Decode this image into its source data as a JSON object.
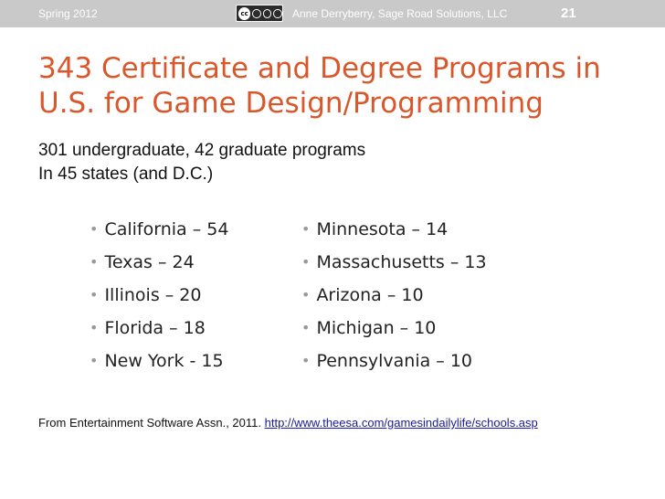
{
  "header": {
    "date": "Spring 2012",
    "license_icon": "creative-commons-by-nc-sa",
    "author": "Anne Derryberry, Sage Road Solutions, LLC",
    "page_number": "21"
  },
  "slide": {
    "title": "343 Certificate and Degree Programs in U.S. for Game Design/Programming",
    "subtitle_line1": "301 undergraduate, 42 graduate programs",
    "subtitle_line2": "In 45 states (and D.C.)",
    "bullets_left": [
      "California – 54",
      "Texas – 24",
      "Illinois – 20",
      "Florida – 18",
      "New York - 15"
    ],
    "bullets_right": [
      "Minnesota – 14",
      "Massachusetts – 13",
      "Arizona – 10",
      "Michigan – 10",
      "Pennsylvania – 10"
    ]
  },
  "footer": {
    "source_text": "From Entertainment Software Assn., 2011.",
    "link_text": "http://www.theesa.com/gamesindailylife/schools.asp"
  },
  "colors": {
    "title": "#d9572b",
    "header_bar": "#c9c9c9",
    "bullet_dot": "#9a9a9a",
    "link": "#1a1a9c"
  }
}
